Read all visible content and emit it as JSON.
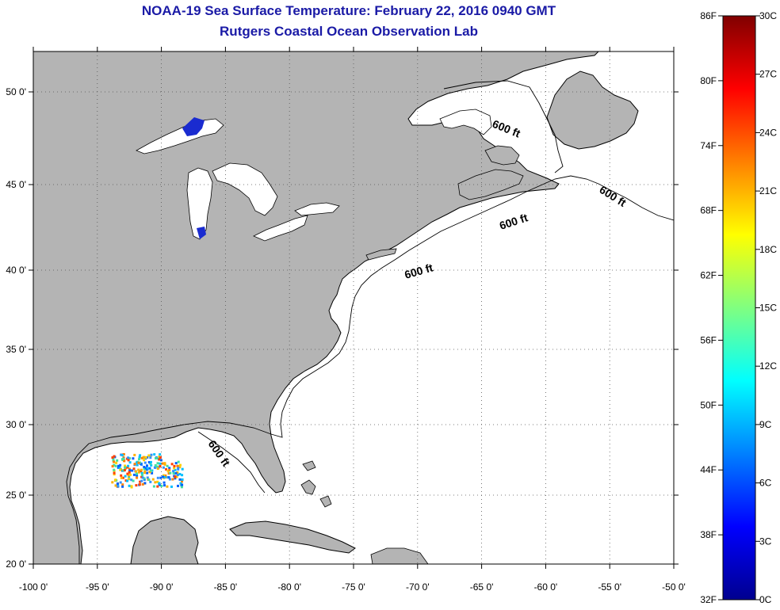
{
  "header": {
    "title": "NOAA-19 Sea Surface Temperature:  February 22, 2016 0940 GMT",
    "subtitle": "Rutgers Coastal Ocean Observation Lab"
  },
  "map": {
    "lon_ticks": [
      "-100 0'",
      "-95 0'",
      "-90 0'",
      "-85 0'",
      "-80 0'",
      "-75 0'",
      "-70 0'",
      "-65 0'",
      "-60 0'",
      "-55 0'",
      "-50 0'"
    ],
    "lat_ticks": [
      "50 0'",
      "45 0'",
      "40 0'",
      "35 0'",
      "30 0'",
      "25 0'",
      "20 0'"
    ],
    "isobath_labels": [
      "600 ft",
      "600 ft",
      "600 ft",
      "600 ft",
      "600 ft"
    ],
    "colors": {
      "land": "#b4b4b4",
      "ocean": "#ffffff",
      "coastline": "#000000",
      "lake_sst": "#1a2bd0"
    }
  },
  "colorbar": {
    "fahrenheit_labels": [
      "86F",
      "80F",
      "74F",
      "68F",
      "62F",
      "56F",
      "50F",
      "44F",
      "38F",
      "32F"
    ],
    "celsius_labels": [
      "30C",
      "27C",
      "24C",
      "21C",
      "18C",
      "15C",
      "12C",
      "9C",
      "6C",
      "3C",
      "0C"
    ],
    "gradient": [
      "#00008f",
      "#0000ff",
      "#0080ff",
      "#00ffff",
      "#80ff80",
      "#ffff00",
      "#ff8000",
      "#ff0000",
      "#800000"
    ]
  }
}
